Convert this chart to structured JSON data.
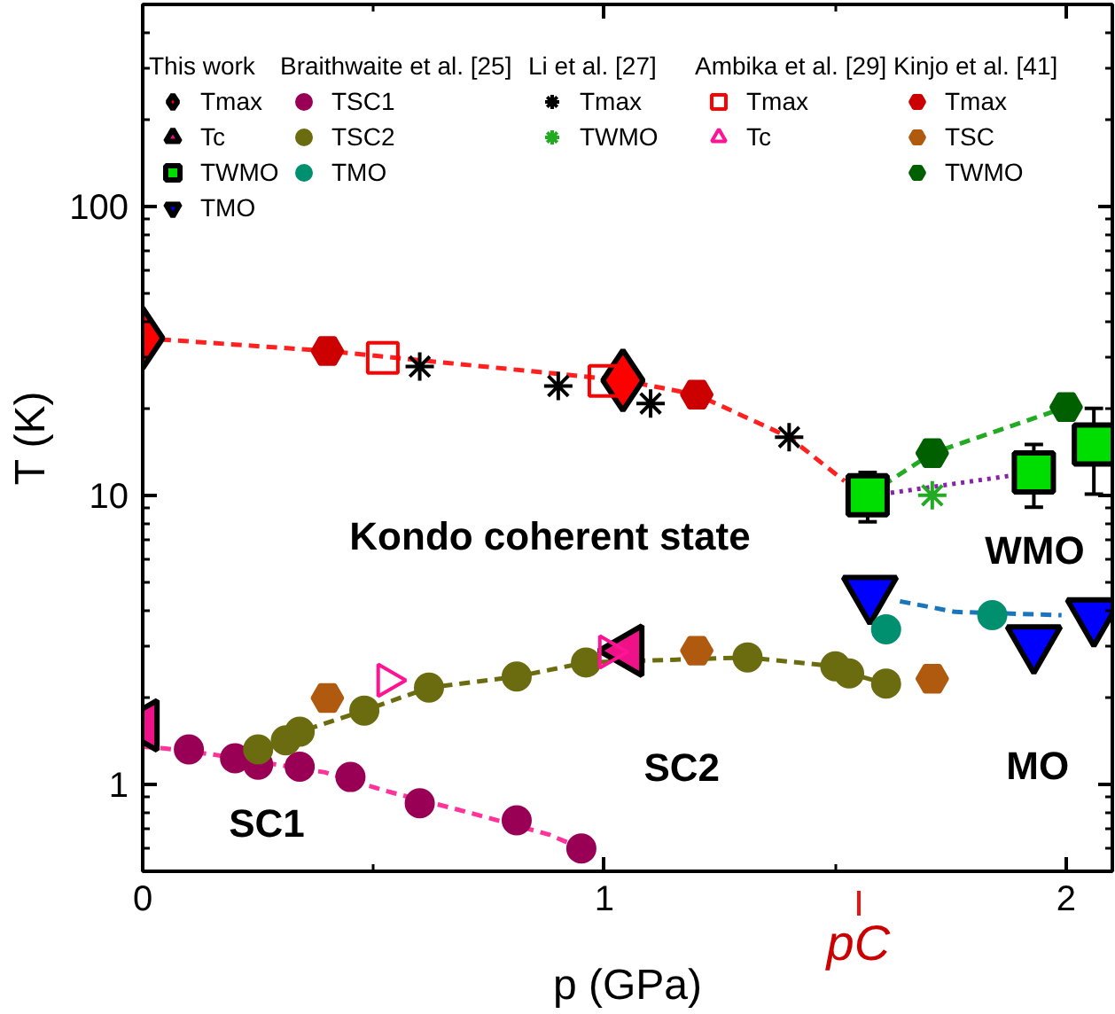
{
  "chart_data": {
    "type": "scatter",
    "xlabel": "p (GPa)",
    "ylabel": "T (K)",
    "xlim": [
      0,
      2.1
    ],
    "ylim": [
      0.5,
      500
    ],
    "log": "y",
    "xticks": [
      0,
      {
        "value": 0.5,
        "label": null
      },
      1,
      {
        "value": 1.5,
        "label": null
      },
      2
    ],
    "yticks": [
      {
        "value": 0.5,
        "label": null
      },
      {
        "value": 0.6,
        "label": null
      },
      {
        "value": 0.7,
        "label": null
      },
      {
        "value": 0.8,
        "label": null
      },
      {
        "value": 0.9,
        "label": null
      },
      1,
      {
        "value": 2,
        "label": null
      },
      {
        "value": 3,
        "label": null
      },
      {
        "value": 4,
        "label": null
      },
      {
        "value": 5,
        "label": null
      },
      {
        "value": 6,
        "label": null
      },
      {
        "value": 7,
        "label": null
      },
      {
        "value": 8,
        "label": null
      },
      {
        "value": 9,
        "label": null
      },
      10,
      {
        "value": 20,
        "label": null
      },
      {
        "value": 30,
        "label": null
      },
      {
        "value": 40,
        "label": null
      },
      {
        "value": 50,
        "label": null
      },
      {
        "value": 60,
        "label": null
      },
      {
        "value": 70,
        "label": null
      },
      {
        "value": 80,
        "label": null
      },
      {
        "value": 90,
        "label": null
      },
      100,
      {
        "value": 200,
        "label": null
      },
      {
        "value": 300,
        "label": null
      },
      {
        "value": 400,
        "label": null
      },
      {
        "value": 500,
        "label": null
      }
    ],
    "grid": false,
    "legend": "top",
    "legend_title": [
      "This work",
      "Braithwaite et al. [25]",
      "Li et al. [27]",
      "Ambika et al. [29]",
      "Kinjo et al. [41]"
    ],
    "series": [
      {
        "type": "line",
        "color": "#ff2020",
        "line_style": "dashed",
        "x": [
          0,
          0.4,
          1.04,
          1.2,
          1.4,
          1.52
        ],
        "values": [
          35,
          31.6,
          25,
          22.3,
          15.9,
          11.2
        ]
      },
      {
        "type": "line",
        "color": "#22aa22",
        "line_style": "dashed",
        "x": [
          1.57,
          1.71,
          2.0
        ],
        "values": [
          10,
          14,
          20.2
        ]
      },
      {
        "type": "line",
        "color": "#8822aa",
        "line_style": "dotted",
        "x": [
          1.62,
          1.88
        ],
        "values": [
          10.2,
          11.7
        ]
      },
      {
        "type": "line",
        "color": "#6b6b10",
        "line_style": "dashed",
        "x": [
          0.25,
          0.31,
          0.34,
          0.48,
          0.62,
          0.81,
          0.96,
          1.31,
          1.5,
          1.53,
          1.61
        ],
        "values": [
          1.32,
          1.42,
          1.52,
          1.8,
          2.16,
          2.36,
          2.64,
          2.75,
          2.56,
          2.42,
          2.23
        ]
      },
      {
        "type": "line",
        "color": "#ff3399",
        "line_style": "dashed",
        "x": [
          0,
          0.05,
          0.15,
          0.395,
          0.525,
          0.705,
          0.88,
          0.95
        ],
        "values": [
          1.35,
          1.33,
          1.27,
          1.1,
          0.95,
          0.8,
          0.67,
          0.6
        ]
      },
      {
        "type": "line",
        "color": "#1a75bb",
        "line_style": "dashed",
        "x": [
          1.64,
          1.76,
          1.99
        ],
        "values": [
          4.3,
          3.95,
          3.85
        ]
      },
      {
        "name": "Tmax",
        "marker": "diamond",
        "color": "#ff0000",
        "x": [
          0,
          1.04
        ],
        "values": [
          35,
          25
        ]
      },
      {
        "name": "Tc",
        "marker": "triangle_left",
        "color": "#ee1188",
        "x": [
          0,
          1.05
        ],
        "values": [
          1.6,
          2.9
        ]
      },
      {
        "name": "TWMO",
        "marker": "square",
        "color": "#00dd00",
        "x": [
          1.57,
          1.93,
          2.06
        ],
        "values": [
          10,
          12,
          15
        ],
        "errors": [
          [
            8.1,
            12
          ],
          [
            9.1,
            15
          ],
          [
            10.1,
            20
          ]
        ]
      },
      {
        "name": "TMO",
        "marker": "triangle",
        "color": "#0000ff",
        "x": [
          1.575,
          1.93,
          2.06
        ],
        "values": [
          4.6,
          3.1,
          3.85
        ]
      },
      {
        "name": "TSC1",
        "marker": "circle",
        "color": "#990055",
        "x": [
          0.1,
          0.2,
          0.25,
          0.34,
          0.45,
          0.6,
          0.81,
          0.95
        ],
        "values": [
          1.32,
          1.23,
          1.17,
          1.15,
          1.06,
          0.86,
          0.75,
          0.6
        ]
      },
      {
        "name": "TSC2",
        "marker": "circle",
        "color": "#6b6b10",
        "x": [
          0.25,
          0.31,
          0.34,
          0.48,
          0.62,
          0.81,
          0.96,
          1.31,
          1.5,
          1.53,
          1.61
        ],
        "values": [
          1.32,
          1.42,
          1.52,
          1.8,
          2.16,
          2.36,
          2.64,
          2.75,
          2.56,
          2.42,
          2.23
        ]
      },
      {
        "name": "TMO",
        "marker": "circle",
        "color": "#009070",
        "x": [
          1.61,
          1.84
        ],
        "values": [
          3.44,
          3.85
        ]
      },
      {
        "name": "Tmax",
        "marker": "cross",
        "color": "#000000",
        "x": [
          0.6,
          0.9,
          1.1,
          1.4
        ],
        "values": [
          27.9,
          23.9,
          20.8,
          15.9
        ]
      },
      {
        "name": "TWMO",
        "marker": "cross",
        "color": "#22aa22",
        "x": [
          1.71
        ],
        "values": [
          10
        ]
      },
      {
        "name": "Tmax",
        "marker": "square_open",
        "color": "#ff0000",
        "x": [
          0.52,
          1.0
        ],
        "values": [
          29.9,
          24.9
        ]
      },
      {
        "name": "Tc",
        "marker": "triangle_right_open",
        "color": "#ff1493",
        "x": [
          0.53,
          1.01
        ],
        "values": [
          2.29,
          2.87
        ]
      },
      {
        "name": "Tmax",
        "color": "#cc0000",
        "x": [
          0.4,
          1.2
        ],
        "values": [
          31.6,
          22.3
        ]
      },
      {
        "name": "TSC",
        "color": "#b05a10",
        "x": [
          0.4,
          1.2,
          1.71
        ],
        "values": [
          1.99,
          2.9,
          2.32
        ]
      },
      {
        "name": "TWMO",
        "color": "#006000",
        "x": [
          1.71,
          2.0
        ],
        "values": [
          14,
          20.2
        ]
      }
    ],
    "annotations": [
      "Kondo coherent state",
      "SC1",
      "SC2",
      "WMO",
      "MO",
      "pC"
    ]
  }
}
